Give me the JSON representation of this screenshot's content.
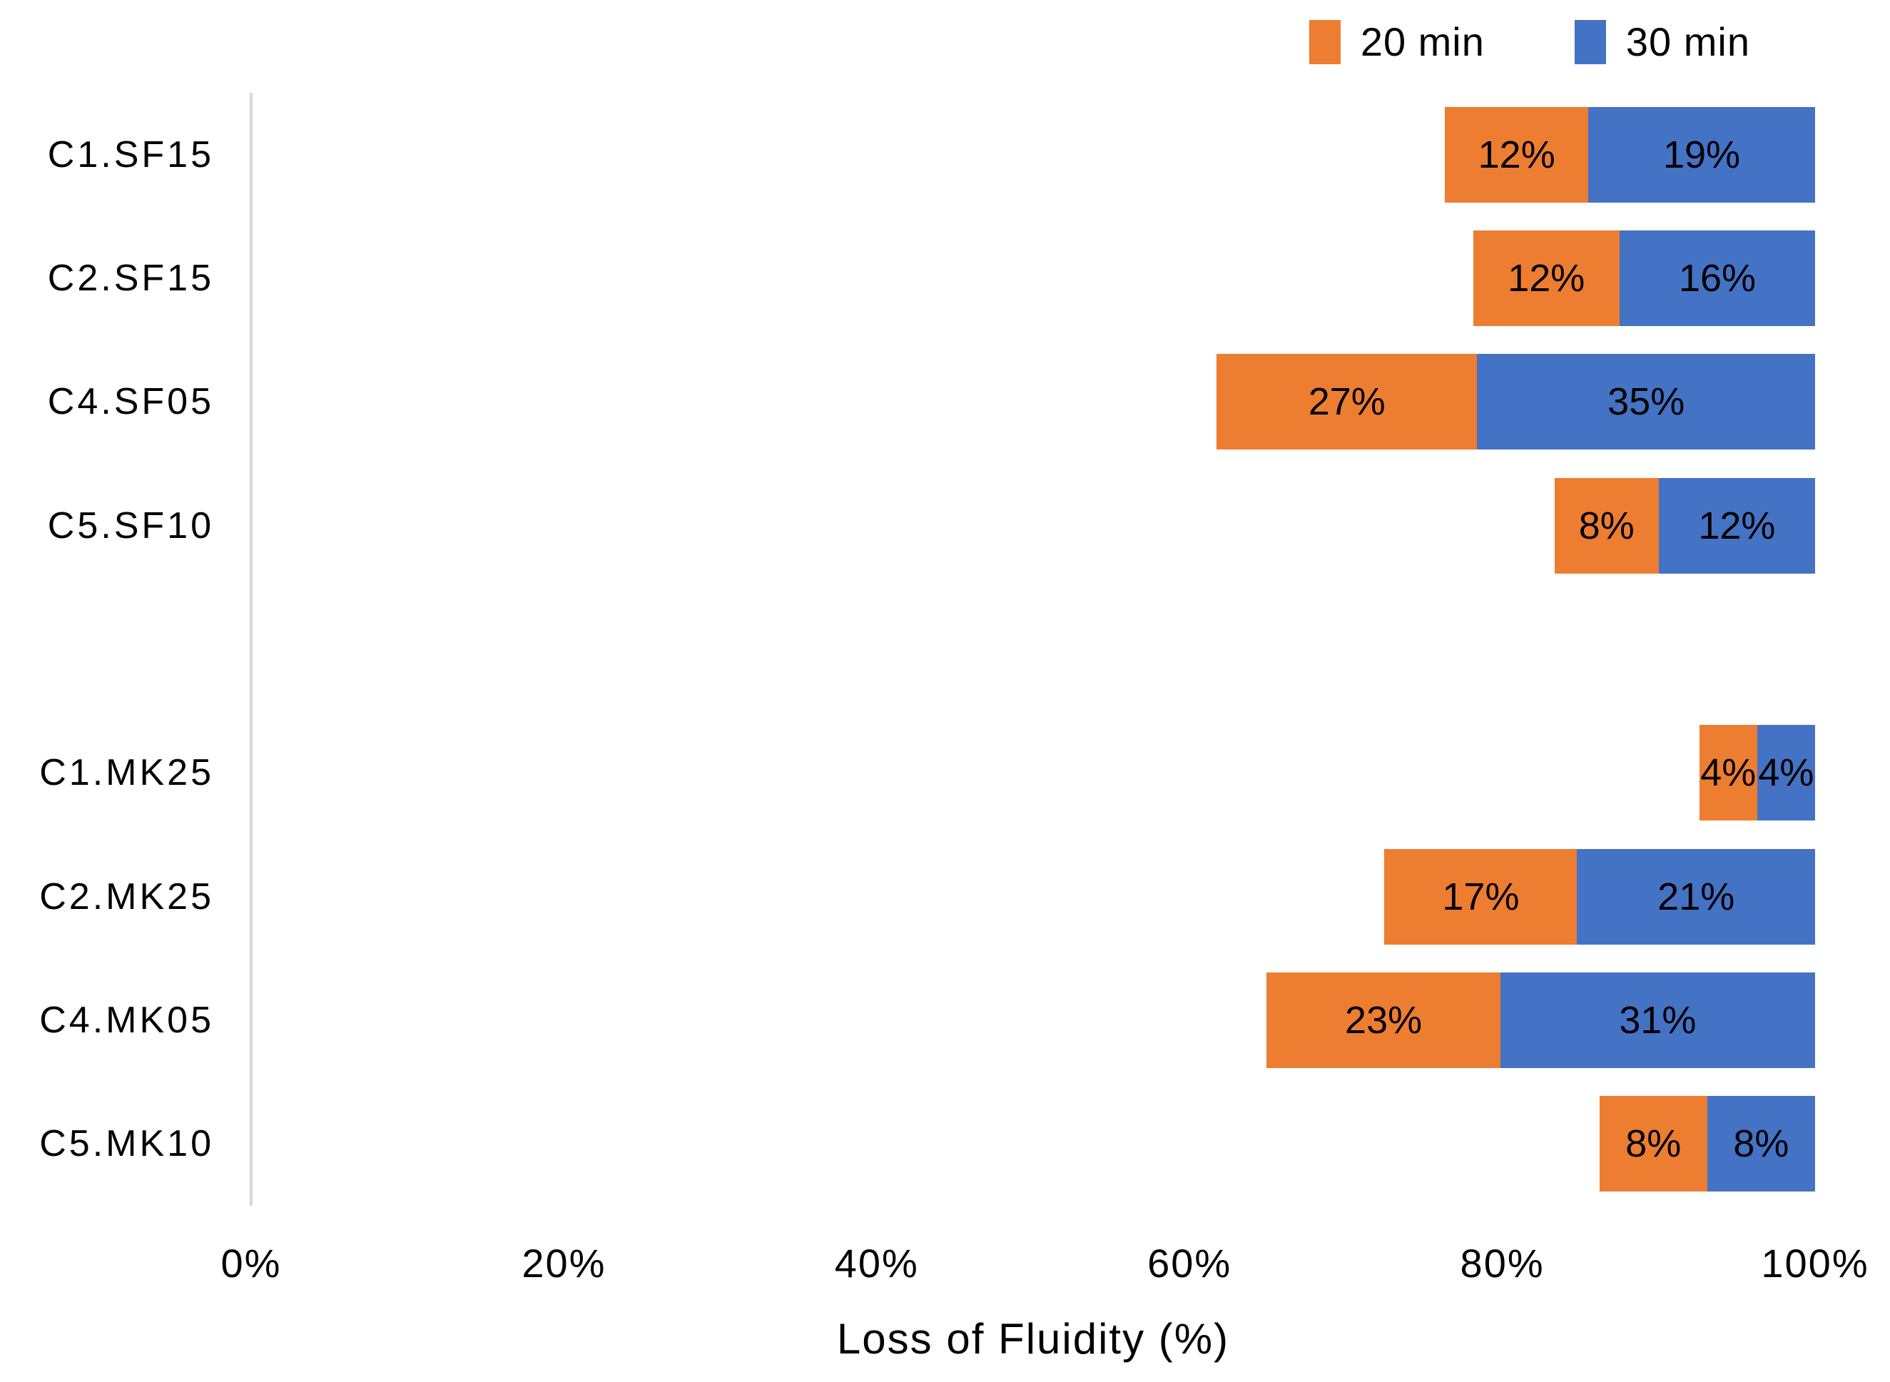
{
  "figure": {
    "background": "#FFFFFF",
    "axis_line_color": "#D9D9D9",
    "text_color": "#000000"
  },
  "chart_data": {
    "type": "bar",
    "orientation": "horizontal",
    "stacked": true,
    "title": "",
    "xlabel": "Loss of Fluidity (%)",
    "ylabel": "",
    "xlim": [
      0,
      100
    ],
    "x_ticks": [
      "0%",
      "20%",
      "40%",
      "60%",
      "80%",
      "100%"
    ],
    "grid": false,
    "legend_position": "top-right",
    "bars_right_aligned_at_pct": 100,
    "segment_width_normalization_base": 100,
    "categories": [
      "C1.SF15",
      "C2.SF15",
      "C4.SF05",
      "C5.SF10",
      "",
      "C1.MK25",
      "C2.MK25",
      "C4.MK05",
      "C5.MK10"
    ],
    "series": [
      {
        "name": "20 min",
        "color": "#ED7D31",
        "values": [
          12,
          12,
          27,
          8,
          null,
          4,
          17,
          23,
          8
        ],
        "labels": [
          "12%",
          "12%",
          "27%",
          "8%",
          null,
          "4%",
          "17%",
          "23%",
          "8%"
        ]
      },
      {
        "name": "30 min",
        "color": "#4472C4",
        "values": [
          19,
          16,
          35,
          12,
          null,
          4,
          21,
          31,
          8
        ],
        "labels": [
          "19%",
          "16%",
          "35%",
          "12%",
          null,
          "4%",
          "21%",
          "31%",
          "8%"
        ]
      }
    ]
  }
}
